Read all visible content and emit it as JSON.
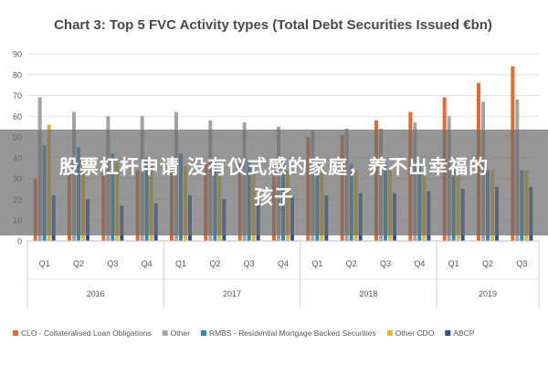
{
  "overlay": {
    "line1": "股票杠杆申请 没有仪式感的家庭，养不出幸福的",
    "line2": "孩子"
  },
  "chart_data": {
    "type": "bar",
    "title": "Chart 3: Top 5 FVC Activity types (Total Debt Securities Issued €bn)",
    "xlabel": "",
    "ylabel": "",
    "ylim": [
      0,
      90
    ],
    "yticks": [
      0,
      10,
      20,
      30,
      40,
      50,
      60,
      70,
      80,
      90
    ],
    "grid": true,
    "legend_position": "bottom",
    "categories": [
      "Q1",
      "Q2",
      "Q3",
      "Q4",
      "Q1",
      "Q2",
      "Q3",
      "Q4",
      "Q1",
      "Q2",
      "Q3",
      "Q4",
      "Q1",
      "Q2",
      "Q3"
    ],
    "groups": [
      {
        "label": "2016",
        "span": 4
      },
      {
        "label": "2017",
        "span": 4
      },
      {
        "label": "2018",
        "span": 4
      },
      {
        "label": "2019",
        "span": 3
      }
    ],
    "series": [
      {
        "name": "CLO - Collateralised Loan Obligations",
        "color": "#e8692d",
        "values": [
          30,
          32,
          33,
          34,
          35,
          37,
          37,
          38,
          50,
          51,
          58,
          62,
          69,
          76,
          84
        ]
      },
      {
        "name": "Other",
        "color": "#a3a3a3",
        "values": [
          69,
          62,
          60,
          60,
          62,
          58,
          57,
          55,
          53,
          54,
          54,
          57,
          60,
          67,
          68
        ]
      },
      {
        "name": "RMBS - Residential Mortgage Backed Securities",
        "color": "#2b8cbe",
        "values": [
          46,
          45,
          42,
          40,
          42,
          40,
          38,
          38,
          38,
          37,
          37,
          36,
          35,
          34,
          34
        ]
      },
      {
        "name": "Other CDO",
        "color": "#e8b923",
        "values": [
          56,
          40,
          38,
          36,
          36,
          34,
          34,
          34,
          34,
          34,
          34,
          34,
          34,
          34,
          34
        ]
      },
      {
        "name": "ABCP",
        "color": "#2e4f9e",
        "values": [
          22,
          20,
          17,
          18,
          22,
          20,
          21,
          22,
          22,
          23,
          23,
          24,
          25,
          26,
          26
        ]
      }
    ]
  }
}
